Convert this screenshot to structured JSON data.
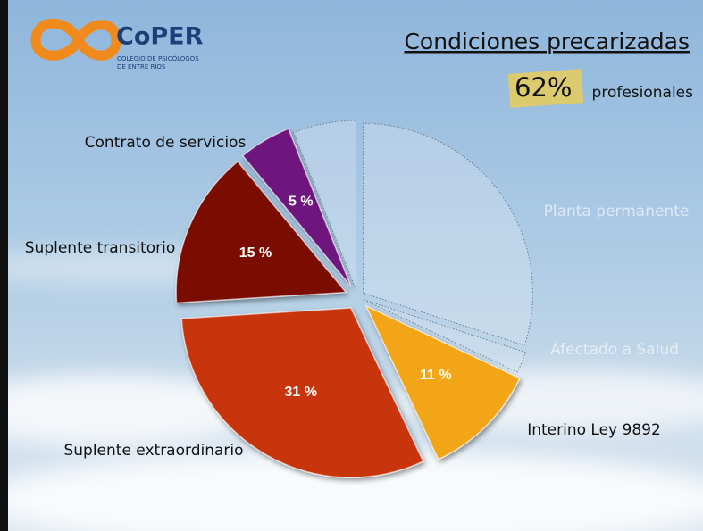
{
  "logo": {
    "name": "CoPER",
    "line1": "COLEGIO DE PSICÓLOGOS",
    "line2": "DE ENTRE RÍOS"
  },
  "chart_data": {
    "type": "pie",
    "title": "Condiciones precarizadas",
    "highlight": {
      "value": 62,
      "label": "62%"
    },
    "highlight_caption": "profesionales",
    "categories": [
      "Planta permanente",
      "Afectado a Salud",
      "Interino Ley 9892",
      "Suplente extraordinario",
      "Suplente transitorio",
      "Contrato de servicios",
      null
    ],
    "values": [
      30,
      2,
      11,
      31,
      15,
      5,
      6
    ],
    "value_labels": [
      null,
      null,
      "11 %",
      "31 %",
      "15 %",
      "5 %",
      null
    ],
    "colors": [
      "#dce8f3",
      "#dce8f3",
      "#f2a515",
      "#c8340f",
      "#7a0c06",
      "#6e137e",
      "#dce8f3"
    ],
    "highlighted": [
      false,
      false,
      true,
      true,
      true,
      true,
      false
    ]
  }
}
